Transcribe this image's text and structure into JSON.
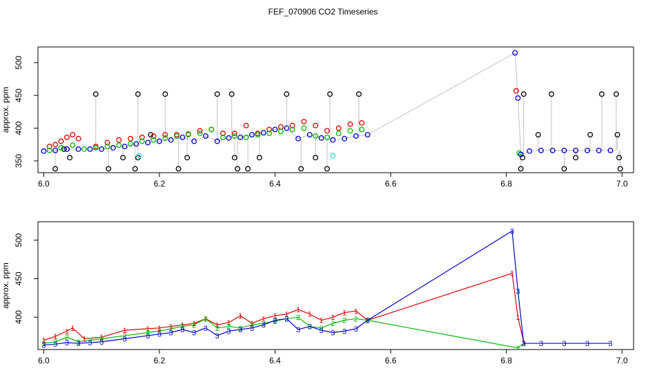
{
  "title": "FEF_070906  CO2 Timeseries",
  "colors": {
    "black": "#000000",
    "red": "#dd0000",
    "green": "#00bb00",
    "blue": "#0000cc",
    "cyan": "#33dddd",
    "grey": "#999999"
  },
  "chart_data": [
    {
      "type": "scatter",
      "panel": "top",
      "title": "",
      "xlabel": "",
      "ylabel": "approx. ppm",
      "xlim": [
        5.99,
        7.02
      ],
      "ylim": [
        332,
        524
      ],
      "xticks": [
        "6.0",
        "6.2",
        "6.4",
        "6.6",
        "6.8",
        "7.0"
      ],
      "yticks": [
        "350",
        "400",
        "450",
        "500"
      ],
      "xtick_values": [
        6.0,
        6.2,
        6.4,
        6.6,
        6.8,
        7.0
      ],
      "ytick_values": [
        350,
        400,
        450,
        500
      ],
      "series": [
        {
          "name": "black",
          "color": "black",
          "x": [
            6.02,
            6.035,
            6.045,
            6.09,
            6.112,
            6.137,
            6.158,
            6.163,
            6.163,
            6.185,
            6.21,
            6.233,
            6.248,
            6.3,
            6.325,
            6.33,
            6.335,
            6.353,
            6.373,
            6.42,
            6.445,
            6.47,
            6.49,
            6.495,
            6.545,
            6.825,
            6.828,
            6.83,
            6.855,
            6.878,
            6.9,
            6.92,
            6.945,
            6.965,
            6.99,
            6.992,
            6.995,
            6.997
          ],
          "y": [
            338,
            368,
            355,
            452,
            338,
            355,
            338,
            355,
            452,
            390,
            452,
            338,
            355,
            452,
            452,
            355,
            338,
            338,
            355,
            452,
            338,
            355,
            338,
            452,
            452,
            338,
            355,
            452,
            390,
            452,
            338,
            355,
            390,
            452,
            452,
            390,
            355,
            338
          ]
        },
        {
          "name": "red",
          "color": "red",
          "x": [
            6.01,
            6.02,
            6.03,
            6.04,
            6.05,
            6.06,
            6.09,
            6.11,
            6.13,
            6.15,
            6.17,
            6.19,
            6.21,
            6.23,
            6.25,
            6.27,
            6.29,
            6.31,
            6.33,
            6.35,
            6.37,
            6.39,
            6.41,
            6.43,
            6.45,
            6.47,
            6.49,
            6.51,
            6.53,
            6.55,
            6.817
          ],
          "y": [
            372,
            375,
            380,
            386,
            390,
            384,
            372,
            378,
            382,
            384,
            386,
            388,
            390,
            390,
            391,
            396,
            398,
            392,
            392,
            404,
            392,
            398,
            402,
            404,
            410,
            404,
            396,
            400,
            406,
            408,
            457
          ]
        },
        {
          "name": "green",
          "color": "green",
          "x": [
            6.01,
            6.03,
            6.05,
            6.07,
            6.09,
            6.11,
            6.13,
            6.15,
            6.17,
            6.19,
            6.21,
            6.23,
            6.25,
            6.27,
            6.29,
            6.31,
            6.33,
            6.35,
            6.37,
            6.39,
            6.41,
            6.43,
            6.45,
            6.47,
            6.49,
            6.51,
            6.53,
            6.55,
            6.822
          ],
          "y": [
            366,
            370,
            374,
            368,
            370,
            372,
            374,
            376,
            380,
            382,
            385,
            388,
            390,
            392,
            398,
            386,
            388,
            386,
            390,
            392,
            395,
            398,
            400,
            388,
            386,
            392,
            396,
            398,
            362
          ]
        },
        {
          "name": "blue",
          "color": "blue",
          "x": [
            6.0,
            6.02,
            6.04,
            6.06,
            6.08,
            6.1,
            6.12,
            6.14,
            6.16,
            6.18,
            6.2,
            6.22,
            6.24,
            6.26,
            6.28,
            6.3,
            6.32,
            6.34,
            6.36,
            6.38,
            6.4,
            6.42,
            6.44,
            6.46,
            6.48,
            6.5,
            6.52,
            6.54,
            6.56,
            6.815,
            6.82,
            6.825,
            6.84,
            6.86,
            6.88,
            6.9,
            6.92,
            6.94,
            6.96,
            6.98
          ],
          "y": [
            365,
            366,
            368,
            368,
            368,
            368,
            370,
            372,
            376,
            378,
            380,
            382,
            386,
            380,
            388,
            380,
            385,
            386,
            390,
            393,
            398,
            400,
            384,
            390,
            385,
            382,
            384,
            388,
            390,
            515,
            446,
            360,
            365,
            366,
            366,
            366,
            366,
            366,
            366,
            366
          ]
        },
        {
          "name": "cyan",
          "color": "cyan",
          "x": [
            6.165,
            6.5
          ],
          "y": [
            358,
            358
          ]
        }
      ]
    },
    {
      "type": "line",
      "panel": "bottom",
      "title": "",
      "xlabel": "",
      "ylabel": "approx. ppm",
      "xlim": [
        5.99,
        7.02
      ],
      "ylim": [
        358,
        524
      ],
      "xticks": [
        "6.0",
        "6.2",
        "6.4",
        "6.6",
        "6.8",
        "7.0"
      ],
      "yticks": [
        "400",
        "450",
        "500"
      ],
      "xtick_values": [
        6.0,
        6.2,
        6.4,
        6.6,
        6.8,
        7.0
      ],
      "ytick_values": [
        400,
        450,
        500
      ],
      "markers": [
        "1",
        "2",
        "3"
      ],
      "series": [
        {
          "name": "1",
          "color": "red",
          "x": [
            6.0,
            6.02,
            6.04,
            6.05,
            6.07,
            6.1,
            6.14,
            6.18,
            6.2,
            6.22,
            6.24,
            6.26,
            6.28,
            6.3,
            6.32,
            6.34,
            6.36,
            6.38,
            6.4,
            6.42,
            6.44,
            6.46,
            6.48,
            6.5,
            6.52,
            6.54,
            6.56,
            6.81,
            6.82,
            6.83
          ],
          "y": [
            370,
            375,
            382,
            386,
            372,
            374,
            383,
            385,
            386,
            388,
            390,
            392,
            398,
            390,
            393,
            402,
            392,
            398,
            402,
            404,
            410,
            404,
            396,
            400,
            406,
            408,
            396,
            457,
            400,
            368
          ]
        },
        {
          "name": "2",
          "color": "green",
          "x": [
            6.0,
            6.02,
            6.04,
            6.06,
            6.08,
            6.1,
            6.14,
            6.18,
            6.2,
            6.22,
            6.24,
            6.26,
            6.28,
            6.3,
            6.32,
            6.34,
            6.36,
            6.38,
            6.4,
            6.42,
            6.44,
            6.46,
            6.48,
            6.5,
            6.52,
            6.54,
            6.56,
            6.82,
            6.83
          ],
          "y": [
            366,
            368,
            374,
            368,
            370,
            372,
            376,
            380,
            382,
            385,
            388,
            390,
            398,
            386,
            388,
            386,
            390,
            392,
            395,
            398,
            400,
            388,
            386,
            392,
            396,
            398,
            396,
            360,
            366
          ]
        },
        {
          "name": "3",
          "color": "blue",
          "x": [
            6.0,
            6.02,
            6.04,
            6.06,
            6.08,
            6.1,
            6.14,
            6.18,
            6.2,
            6.22,
            6.24,
            6.26,
            6.28,
            6.3,
            6.32,
            6.34,
            6.36,
            6.38,
            6.4,
            6.42,
            6.44,
            6.46,
            6.48,
            6.5,
            6.52,
            6.54,
            6.56,
            6.81,
            6.82,
            6.83,
            6.86,
            6.9,
            6.94,
            6.98
          ],
          "y": [
            364,
            365,
            367,
            366,
            367,
            368,
            372,
            376,
            378,
            380,
            384,
            380,
            386,
            376,
            382,
            384,
            386,
            390,
            396,
            398,
            384,
            388,
            383,
            380,
            382,
            385,
            396,
            512,
            434,
            366,
            366,
            366,
            366,
            366
          ]
        }
      ]
    }
  ]
}
